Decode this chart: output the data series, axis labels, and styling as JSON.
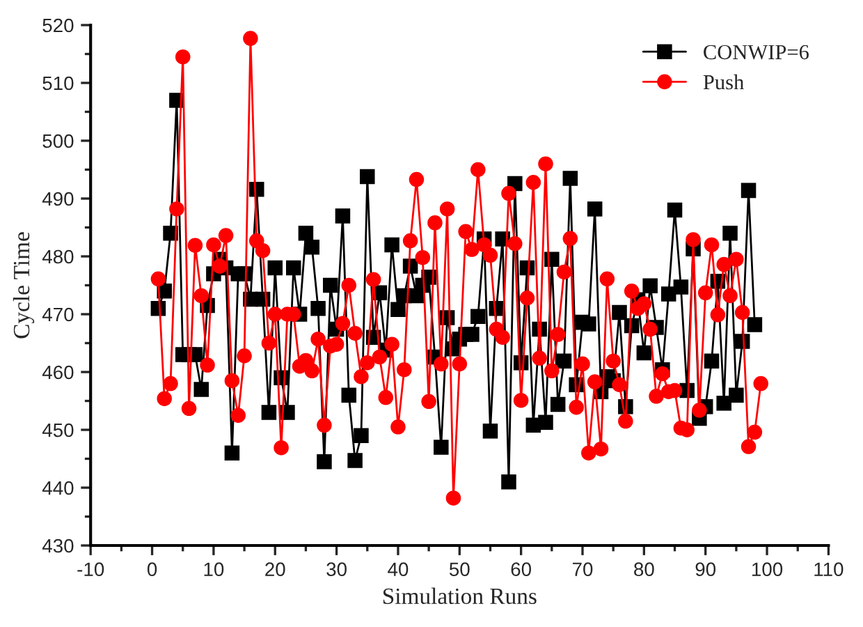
{
  "chart_data": {
    "type": "line",
    "xlabel": "Simulation Runs",
    "ylabel": "Cycle Time",
    "xlim": [
      -10,
      110
    ],
    "xticks": [
      -10,
      0,
      10,
      20,
      30,
      40,
      50,
      60,
      70,
      80,
      90,
      100,
      110
    ],
    "ylim": [
      430,
      520
    ],
    "yticks": [
      430,
      440,
      450,
      460,
      470,
      480,
      490,
      500,
      510,
      520
    ],
    "grid": false,
    "legend": "top right",
    "series": [
      {
        "name": "CONWIP=6",
        "color": "#000000",
        "marker": "square",
        "x": [
          1,
          2,
          3,
          4,
          5,
          6,
          7,
          8,
          9,
          10,
          11,
          12,
          13,
          14,
          15,
          16,
          17,
          18,
          19,
          20,
          21,
          22,
          23,
          24,
          25,
          26,
          27,
          28,
          29,
          30,
          31,
          32,
          33,
          34,
          35,
          36,
          37,
          38,
          39,
          40,
          41,
          42,
          43,
          44,
          45,
          46,
          47,
          48,
          49,
          50,
          51,
          52,
          53,
          54,
          55,
          56,
          57,
          58,
          59,
          60,
          61,
          62,
          63,
          64,
          65,
          66,
          67,
          68,
          69,
          70,
          71,
          72,
          73,
          74,
          75,
          76,
          77,
          78,
          79,
          80,
          81,
          82,
          83,
          84,
          85,
          86,
          87,
          88,
          89,
          90,
          91,
          92,
          93,
          94,
          95,
          96,
          97,
          98
        ],
        "values": [
          471,
          474,
          484,
          507,
          463,
          463,
          463,
          457,
          471.5,
          477,
          479.5,
          478,
          446,
          477,
          477,
          472.6,
          491.6,
          472.6,
          453,
          478,
          459,
          453,
          478,
          470,
          484,
          481.6,
          471,
          444.5,
          475,
          467.4,
          487,
          456,
          444.7,
          449,
          493.8,
          466,
          473.7,
          463.8,
          482,
          470.8,
          473.2,
          478.3,
          473.2,
          475,
          476.4,
          462.6,
          447,
          469.4,
          464,
          465.7,
          466.5,
          466.5,
          469.6,
          483,
          449.8,
          471,
          483,
          441,
          492.6,
          461.6,
          478,
          450.8,
          467.4,
          451.3,
          479.5,
          454.4,
          461.9,
          493.5,
          457.8,
          468.6,
          468.3,
          488.2,
          456.6,
          459.2,
          458.5,
          470.3,
          454,
          468,
          472.5,
          463.3,
          474.9,
          467.7,
          460.4,
          473.5,
          488,
          474.7,
          456.8,
          481.3,
          452,
          454,
          461.9,
          475.7,
          454.6,
          484,
          456,
          465.3,
          491.4,
          468.2
        ]
      },
      {
        "name": "Push",
        "color": "#ff0000",
        "marker": "circle",
        "x": [
          1,
          2,
          3,
          4,
          5,
          6,
          7,
          8,
          9,
          10,
          11,
          12,
          13,
          14,
          15,
          16,
          17,
          18,
          19,
          20,
          21,
          22,
          23,
          24,
          25,
          26,
          27,
          28,
          29,
          30,
          31,
          32,
          33,
          34,
          35,
          36,
          37,
          38,
          39,
          40,
          41,
          42,
          43,
          44,
          45,
          46,
          47,
          48,
          49,
          50,
          51,
          52,
          53,
          54,
          55,
          56,
          57,
          58,
          59,
          60,
          61,
          62,
          63,
          64,
          65,
          66,
          67,
          68,
          69,
          70,
          71,
          72,
          73,
          74,
          75,
          76,
          77,
          78,
          79,
          80,
          81,
          82,
          83,
          84,
          85,
          86,
          87,
          88,
          89,
          90,
          91,
          92,
          93,
          94,
          95,
          96,
          97,
          98,
          99
        ],
        "values": [
          476.1,
          455.4,
          458,
          488.2,
          514.5,
          453.7,
          481.9,
          473.2,
          461.2,
          482,
          478.3,
          483.6,
          458.5,
          452.5,
          462.8,
          517.7,
          482.7,
          481,
          465,
          470,
          446.9,
          470,
          470,
          461,
          462,
          460.2,
          465.7,
          450.8,
          464.5,
          464.8,
          468.4,
          475,
          466.7,
          459.2,
          461.6,
          476,
          462.6,
          455.6,
          464.8,
          450.5,
          460.4,
          482.7,
          493.3,
          479.8,
          454.9,
          485.8,
          461.4,
          488.2,
          438.2,
          461.4,
          484.3,
          481.2,
          495,
          482,
          480.2,
          467.4,
          466,
          490.9,
          482.2,
          455.1,
          472.8,
          492.8,
          462.4,
          496,
          460.2,
          466.5,
          477.3,
          483.1,
          453.9,
          461.4,
          446,
          458.3,
          446.7,
          476.1,
          461.9,
          457.8,
          451.5,
          474,
          471,
          471.8,
          467.4,
          455.8,
          459.7,
          456.6,
          456.8,
          450.3,
          450,
          482.9,
          453.4,
          473.7,
          482,
          469.9,
          478.6,
          473.2,
          479.5,
          470.3,
          447.1,
          449.6,
          458
        ]
      }
    ]
  }
}
